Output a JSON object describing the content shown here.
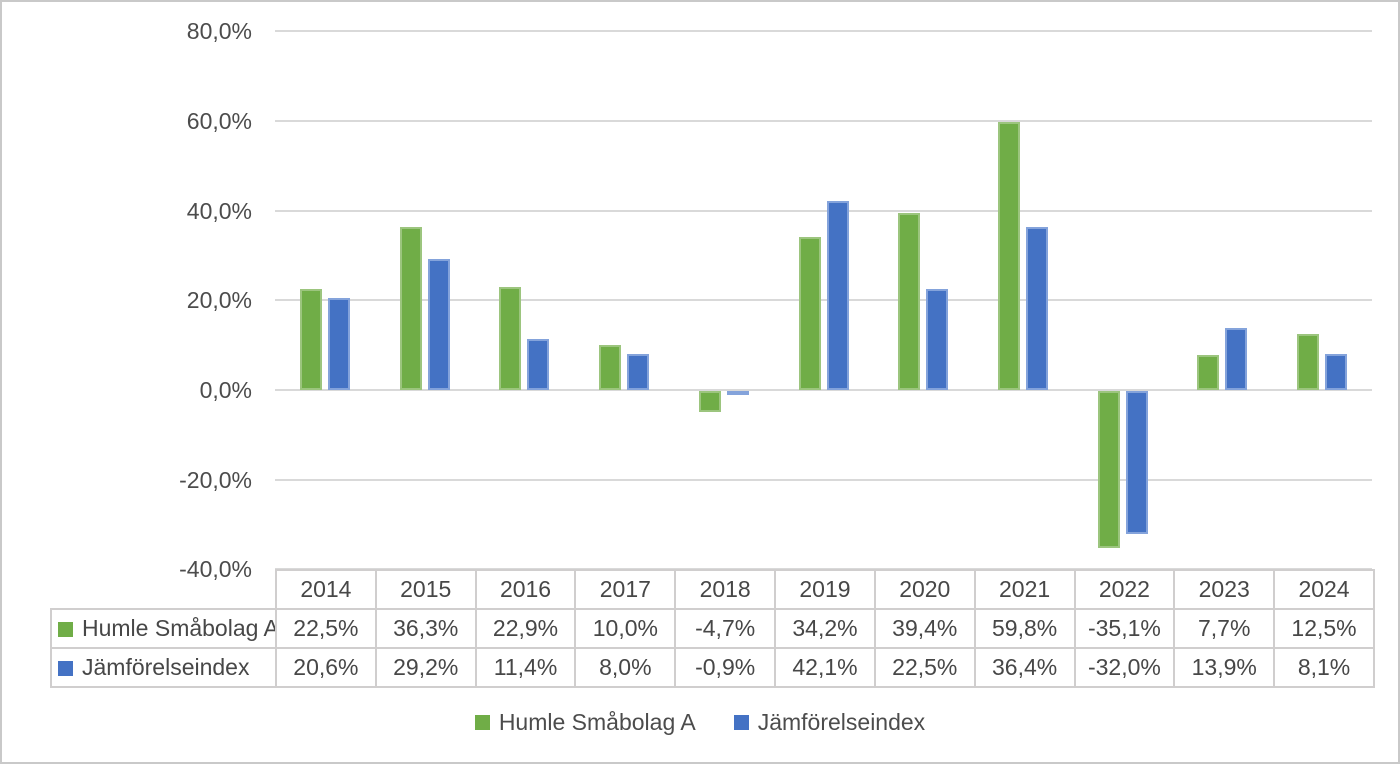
{
  "page": {
    "background": "#ffffff",
    "border_color": "#c9c9c9",
    "text_color": "#4c4c4c",
    "gridline_color": "#d9d9d9",
    "table_border_color": "#d0cece"
  },
  "chart_data": {
    "type": "bar",
    "title": "",
    "xlabel": "",
    "ylabel": "",
    "categories": [
      "2014",
      "2015",
      "2016",
      "2017",
      "2018",
      "2019",
      "2020",
      "2021",
      "2022",
      "2023",
      "2024"
    ],
    "series": [
      {
        "name": "Humle Småbolag A",
        "color": "#70AD47",
        "border_color": "#9CC57E",
        "values": [
          22.5,
          36.3,
          22.9,
          10.0,
          -4.7,
          34.2,
          39.4,
          59.8,
          -35.1,
          7.7,
          12.5
        ]
      },
      {
        "name": "Jämförelseindex",
        "color": "#4472C4",
        "border_color": "#84A3DB",
        "values": [
          20.6,
          29.2,
          11.4,
          8.0,
          -0.9,
          42.1,
          22.5,
          36.4,
          -32.0,
          13.9,
          8.1
        ]
      }
    ],
    "ylim": [
      -40,
      80
    ],
    "ytick_step": 20,
    "yticks": [
      80,
      60,
      40,
      20,
      0,
      -20,
      -40
    ],
    "ytick_labels": [
      "80,0%",
      "60,0%",
      "40,0%",
      "20,0%",
      "0,0%",
      "-20,0%",
      "-40,0%"
    ],
    "grid": true,
    "legend_position": "bottom",
    "value_format": "percent, 1 decimal, comma separator"
  },
  "table": {
    "header_row": [
      "",
      "2014",
      "2015",
      "2016",
      "2017",
      "2018",
      "2019",
      "2020",
      "2021",
      "2022",
      "2023",
      "2024"
    ],
    "rows": [
      {
        "label": "Humle Småbolag A",
        "swatch_color": "#70AD47",
        "values": [
          "22,5%",
          "36,3%",
          "22,9%",
          "10,0%",
          "-4,7%",
          "34,2%",
          "39,4%",
          "59,8%",
          "-35,1%",
          "7,7%",
          "12,5%"
        ]
      },
      {
        "label": "Jämförelseindex",
        "swatch_color": "#4472C4",
        "values": [
          "20,6%",
          "29,2%",
          "11,4%",
          "8,0%",
          "-0,9%",
          "42,1%",
          "22,5%",
          "36,4%",
          "-32,0%",
          "13,9%",
          "8,1%"
        ]
      }
    ]
  },
  "legend": {
    "items": [
      {
        "label": "Humle Småbolag A",
        "color": "#70AD47"
      },
      {
        "label": "Jämförelseindex",
        "color": "#4472C4"
      }
    ]
  }
}
